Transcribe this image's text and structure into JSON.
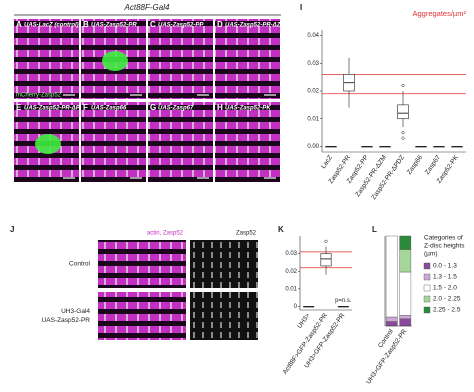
{
  "header": {
    "title": "Act88F-Gal4"
  },
  "image_panels": [
    {
      "letter": "A",
      "label": "UAS-LacZ (control)"
    },
    {
      "letter": "B",
      "label": "UAS-Zasp52-PR"
    },
    {
      "letter": "C",
      "label": "UAS-Zasp52-PP"
    },
    {
      "letter": "D",
      "label": "UAS-Zasp52-PR-ΔZM"
    },
    {
      "letter": "E",
      "label": "UAS-Zasp52-PR-ΔPDZ"
    },
    {
      "letter": "F",
      "label": "UAS-Zasp66"
    },
    {
      "letter": "G",
      "label": "UAS-Zasp67"
    },
    {
      "letter": "H",
      "label": "UAS-Zasp52-PK"
    }
  ],
  "channel_label": "mCherry-Zasp52",
  "panel_j": {
    "letter": "J",
    "channels": [
      "actin, Zasp52",
      "Zasp52"
    ],
    "rows": [
      [
        "Control"
      ],
      [
        "UH3-Gal4",
        "UAS-Zasp52-PR"
      ]
    ]
  },
  "chart_data": [
    {
      "type": "box",
      "letter": "I",
      "title": "Aggregates/µm²",
      "categories": [
        "LacZ",
        "Zasp52-PR",
        "Zasp52-PP",
        "Zasp52-PR-ΔZM",
        "Zasp52-PR-ΔPDZ",
        "Zasp66",
        "Zasp67",
        "Zasp52-PK"
      ],
      "boxes": [
        {
          "min": 0,
          "q1": 0,
          "median": 0,
          "q3": 0,
          "max": 0,
          "outliers": []
        },
        {
          "min": 0.014,
          "q1": 0.02,
          "median": 0.023,
          "q3": 0.026,
          "max": 0.032,
          "outliers": []
        },
        {
          "min": 0,
          "q1": 0,
          "median": 0,
          "q3": 0,
          "max": 0,
          "outliers": []
        },
        {
          "min": 0,
          "q1": 0,
          "median": 0,
          "q3": 0,
          "max": 0,
          "outliers": []
        },
        {
          "min": 0.007,
          "q1": 0.01,
          "median": 0.012,
          "q3": 0.015,
          "max": 0.02,
          "outliers": [
            0.005,
            0.003,
            0.022
          ]
        },
        {
          "min": 0,
          "q1": 0,
          "median": 0,
          "q3": 0,
          "max": 0,
          "outliers": []
        },
        {
          "min": 0,
          "q1": 0,
          "median": 0,
          "q3": 0,
          "max": 0,
          "outliers": []
        },
        {
          "min": 0,
          "q1": 0,
          "median": 0,
          "q3": 0,
          "max": 0,
          "outliers": []
        }
      ],
      "ylim": [
        -0.002,
        0.042
      ],
      "yticks": [
        {
          "value": 0,
          "label": "0.00"
        },
        0.01,
        0.02,
        0.03,
        0.04
      ],
      "reference_lines": [
        0.019,
        0.026
      ],
      "reference_color": "#e03030",
      "color": "#ffffff"
    },
    {
      "type": "box",
      "letter": "K",
      "categories": [
        "UH3>",
        "Act88F>GFP-Zasp52-PR",
        "UH3>GFP-Zasp52-PR"
      ],
      "boxes": [
        {
          "min": 0,
          "q1": 0,
          "median": 0,
          "q3": 0,
          "max": 0,
          "outliers": []
        },
        {
          "min": 0.018,
          "q1": 0.023,
          "median": 0.027,
          "q3": 0.03,
          "max": 0.034,
          "outliers": [
            0.037
          ]
        },
        {
          "min": 0,
          "q1": 0,
          "median": 0,
          "q3": 0,
          "max": 0,
          "outliers": []
        }
      ],
      "ylim": [
        -0.002,
        0.04
      ],
      "yticks": [
        0,
        0.01,
        0.02,
        0.03
      ],
      "reference_lines": [
        0.022,
        0.031
      ],
      "reference_color": "#e03030",
      "color": "#ffffff",
      "annotation": "p=n.s."
    },
    {
      "type": "stacked_bar",
      "letter": "L",
      "categories": [
        "Control",
        "UH3>GFP-Zasp52-PR"
      ],
      "legend_title": [
        "Categories of",
        "Z-disc heights",
        "(µm)"
      ],
      "series": [
        {
          "name": "0.0 - 1.3",
          "color": "#8a4a9a",
          "values": [
            5,
            8
          ]
        },
        {
          "name": "1.3 - 1.5",
          "color": "#c9a9d6",
          "values": [
            5,
            4
          ]
        },
        {
          "name": "1.5 - 2.0",
          "color": "#ffffff",
          "values": [
            90,
            48
          ]
        },
        {
          "name": "2.0 - 2.25",
          "color": "#a6d79a",
          "values": [
            0,
            25
          ]
        },
        {
          "name": "2.25 - 2.5",
          "color": "#2a8a3a",
          "values": [
            0,
            15
          ]
        }
      ],
      "ylim": [
        0,
        100
      ]
    }
  ]
}
